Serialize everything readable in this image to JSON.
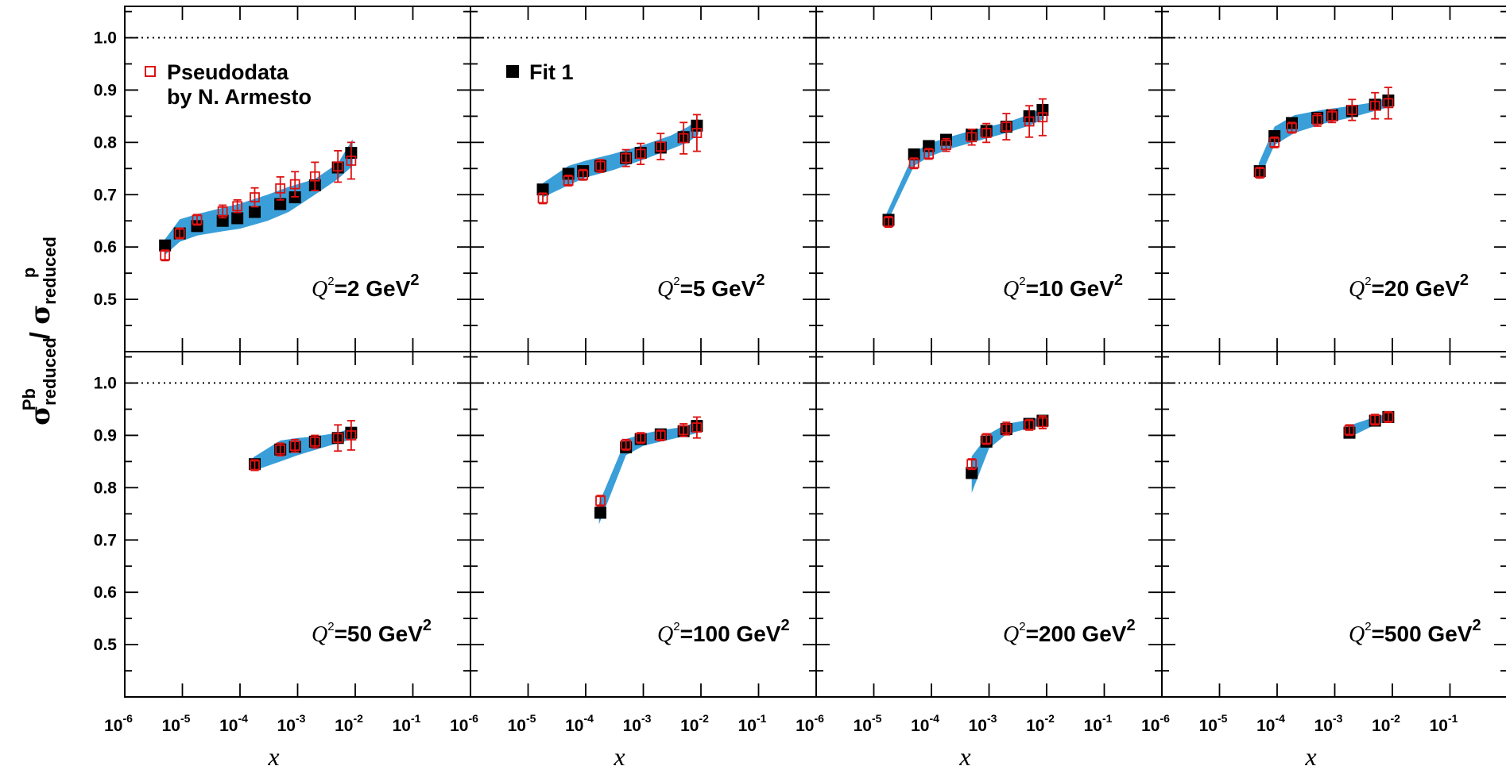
{
  "colors": {
    "band": "#3a9fd8",
    "pseudodata": "#dd1111",
    "fit": "#000000",
    "frame": "#000000"
  },
  "y_axis_label": {
    "sigma": "σ",
    "numerator_sub": "reduced",
    "numerator_sup": "Pb",
    "slash": " / ",
    "denominator_sub": "reduced",
    "denominator_sup": "p"
  },
  "x_axis_label": "x",
  "legend": {
    "pseudodata_line1": "Pseudodata",
    "pseudodata_line2": "by N. Armesto",
    "fit": "Fit 1"
  },
  "chart_data": {
    "type": "scatter",
    "layout": "2 rows × 4 columns of panels, shared axes",
    "x_scale": "log",
    "xlim": [
      1e-06,
      1
    ],
    "ylim": [
      0.4,
      1.06
    ],
    "x_tick_labels": [
      "10-6",
      "10-5",
      "10-4",
      "10-3",
      "10-2",
      "10-1"
    ],
    "y_ticks": [
      0.5,
      0.6,
      0.7,
      0.8,
      0.9,
      1.0
    ],
    "y_tick_labels": [
      "0.5",
      "0.6",
      "0.7",
      "0.8",
      "0.9",
      "1.0"
    ],
    "reference_line": 1.0,
    "series_names": [
      "Pseudodata by N. Armesto",
      "Fit 1"
    ],
    "panels": [
      {
        "label_sym": "Q",
        "label_sup": "2",
        "label_value": "=2 GeV",
        "label_unit_sup": "2",
        "pseudo": [
          [
            5e-06,
            0.584,
            0.01
          ],
          [
            9e-06,
            0.626,
            0.01
          ],
          [
            1.8e-05,
            0.652,
            0.01
          ],
          [
            5e-05,
            0.668,
            0.012
          ],
          [
            9e-05,
            0.678,
            0.012
          ],
          [
            0.00018,
            0.695,
            0.018
          ],
          [
            0.0005,
            0.712,
            0.022
          ],
          [
            0.0009,
            0.72,
            0.024
          ],
          [
            0.002,
            0.735,
            0.027
          ],
          [
            0.005,
            0.754,
            0.03
          ],
          [
            0.0085,
            0.765,
            0.035
          ]
        ],
        "fit": [
          [
            5e-06,
            0.603
          ],
          [
            9e-06,
            0.626
          ],
          [
            1.8e-05,
            0.64
          ],
          [
            5e-05,
            0.65
          ],
          [
            9e-05,
            0.655
          ],
          [
            0.00018,
            0.667
          ],
          [
            0.0005,
            0.682
          ],
          [
            0.0009,
            0.695
          ],
          [
            0.002,
            0.718
          ],
          [
            0.005,
            0.752
          ],
          [
            0.0085,
            0.78
          ]
        ],
        "band": [
          [
            5e-06,
            0.585,
            0.615
          ],
          [
            9e-06,
            0.61,
            0.653
          ],
          [
            1.8e-05,
            0.622,
            0.663
          ],
          [
            5e-05,
            0.63,
            0.675
          ],
          [
            0.0001,
            0.635,
            0.683
          ],
          [
            0.0003,
            0.65,
            0.7
          ],
          [
            0.0007,
            0.667,
            0.715
          ],
          [
            0.002,
            0.7,
            0.73
          ],
          [
            0.005,
            0.73,
            0.76
          ],
          [
            0.009,
            0.755,
            0.806
          ]
        ]
      },
      {
        "label_sym": "Q",
        "label_sup": "2",
        "label_value": "=5 GeV",
        "label_unit_sup": "2",
        "pseudo": [
          [
            1.8e-05,
            0.693,
            0.01
          ],
          [
            5e-05,
            0.727,
            0.01
          ],
          [
            9e-05,
            0.738,
            0.01
          ],
          [
            0.00018,
            0.755,
            0.012
          ],
          [
            0.0005,
            0.77,
            0.016
          ],
          [
            0.0009,
            0.778,
            0.02
          ],
          [
            0.002,
            0.792,
            0.025
          ],
          [
            0.005,
            0.808,
            0.03
          ],
          [
            0.0085,
            0.818,
            0.035
          ]
        ],
        "fit": [
          [
            1.8e-05,
            0.71
          ],
          [
            5e-05,
            0.74
          ],
          [
            9e-05,
            0.745
          ],
          [
            0.00018,
            0.755
          ],
          [
            0.0005,
            0.77
          ],
          [
            0.0009,
            0.78
          ],
          [
            0.002,
            0.79
          ],
          [
            0.005,
            0.81
          ],
          [
            0.0085,
            0.832
          ]
        ],
        "band": [
          [
            1.8e-05,
            0.695,
            0.722
          ],
          [
            5e-05,
            0.718,
            0.755
          ],
          [
            0.0001,
            0.733,
            0.765
          ],
          [
            0.0003,
            0.747,
            0.778
          ],
          [
            0.001,
            0.767,
            0.795
          ],
          [
            0.003,
            0.787,
            0.813
          ],
          [
            0.006,
            0.8,
            0.83
          ],
          [
            0.009,
            0.815,
            0.845
          ]
        ]
      },
      {
        "label_sym": "Q",
        "label_sup": "2",
        "label_value": "=10 GeV",
        "label_unit_sup": "2",
        "pseudo": [
          [
            1.8e-05,
            0.648,
            0.01
          ],
          [
            5e-05,
            0.76,
            0.01
          ],
          [
            9e-05,
            0.778,
            0.01
          ],
          [
            0.00018,
            0.795,
            0.012
          ],
          [
            0.0005,
            0.81,
            0.015
          ],
          [
            0.0009,
            0.818,
            0.018
          ],
          [
            0.002,
            0.83,
            0.025
          ],
          [
            0.005,
            0.84,
            0.03
          ],
          [
            0.0085,
            0.848,
            0.035
          ]
        ],
        "fit": [
          [
            1.8e-05,
            0.652
          ],
          [
            5e-05,
            0.777
          ],
          [
            9e-05,
            0.793
          ],
          [
            0.00018,
            0.805
          ],
          [
            0.0005,
            0.815
          ],
          [
            0.0009,
            0.822
          ],
          [
            0.002,
            0.83
          ],
          [
            0.005,
            0.85
          ],
          [
            0.0085,
            0.862
          ]
        ],
        "band": [
          [
            1.6e-05,
            0.64,
            0.66
          ],
          [
            5e-05,
            0.755,
            0.78
          ],
          [
            9e-05,
            0.772,
            0.798
          ],
          [
            0.0002,
            0.787,
            0.81
          ],
          [
            0.0006,
            0.802,
            0.825
          ],
          [
            0.002,
            0.818,
            0.838
          ],
          [
            0.005,
            0.832,
            0.853
          ],
          [
            0.009,
            0.845,
            0.868
          ]
        ]
      },
      {
        "label_sym": "Q",
        "label_sup": "2",
        "label_value": "=20 GeV",
        "label_unit_sup": "2",
        "pseudo": [
          [
            5e-05,
            0.742,
            0.01
          ],
          [
            9e-05,
            0.8,
            0.01
          ],
          [
            0.00018,
            0.828,
            0.01
          ],
          [
            0.0005,
            0.843,
            0.012
          ],
          [
            0.0009,
            0.85,
            0.012
          ],
          [
            0.002,
            0.862,
            0.02
          ],
          [
            0.005,
            0.87,
            0.025
          ],
          [
            0.0085,
            0.875,
            0.03
          ]
        ],
        "fit": [
          [
            5e-05,
            0.745
          ],
          [
            9e-05,
            0.812
          ],
          [
            0.00018,
            0.837
          ],
          [
            0.0005,
            0.847
          ],
          [
            0.0009,
            0.852
          ],
          [
            0.002,
            0.86
          ],
          [
            0.005,
            0.872
          ],
          [
            0.0085,
            0.88
          ]
        ],
        "band": [
          [
            4.8e-05,
            0.728,
            0.76
          ],
          [
            9e-05,
            0.795,
            0.83
          ],
          [
            0.0002,
            0.818,
            0.852
          ],
          [
            0.0006,
            0.835,
            0.862
          ],
          [
            0.002,
            0.848,
            0.87
          ],
          [
            0.005,
            0.86,
            0.877
          ],
          [
            0.009,
            0.868,
            0.888
          ]
        ]
      },
      {
        "label_sym": "Q",
        "label_sup": "2",
        "label_value": "=50 GeV",
        "label_unit_sup": "2",
        "pseudo": [
          [
            0.00018,
            0.843,
            0.01
          ],
          [
            0.0005,
            0.873,
            0.012
          ],
          [
            0.0009,
            0.88,
            0.012
          ],
          [
            0.002,
            0.888,
            0.012
          ],
          [
            0.005,
            0.895,
            0.025
          ],
          [
            0.0085,
            0.9,
            0.028
          ]
        ],
        "fit": [
          [
            0.00018,
            0.845
          ],
          [
            0.0005,
            0.873
          ],
          [
            0.0009,
            0.878
          ],
          [
            0.002,
            0.888
          ],
          [
            0.005,
            0.895
          ],
          [
            0.0085,
            0.905
          ]
        ],
        "band": [
          [
            0.00017,
            0.832,
            0.858
          ],
          [
            0.0005,
            0.85,
            0.89
          ],
          [
            0.001,
            0.862,
            0.895
          ],
          [
            0.002,
            0.872,
            0.898
          ],
          [
            0.005,
            0.885,
            0.905
          ],
          [
            0.009,
            0.893,
            0.915
          ]
        ]
      },
      {
        "label_sym": "Q",
        "label_sup": "2",
        "label_value": "=100 GeV",
        "label_unit_sup": "2",
        "pseudo": [
          [
            0.00018,
            0.775,
            0.01
          ],
          [
            0.0005,
            0.882,
            0.01
          ],
          [
            0.0009,
            0.895,
            0.01
          ],
          [
            0.002,
            0.9,
            0.01
          ],
          [
            0.005,
            0.91,
            0.012
          ],
          [
            0.0085,
            0.915,
            0.02
          ]
        ],
        "fit": [
          [
            0.00018,
            0.752
          ],
          [
            0.0005,
            0.877
          ],
          [
            0.0009,
            0.893
          ],
          [
            0.002,
            0.902
          ],
          [
            0.005,
            0.908
          ],
          [
            0.0085,
            0.918
          ]
        ],
        "band": [
          [
            0.00017,
            0.73,
            0.77
          ],
          [
            0.0005,
            0.862,
            0.893
          ],
          [
            0.001,
            0.88,
            0.903
          ],
          [
            0.002,
            0.888,
            0.91
          ],
          [
            0.005,
            0.898,
            0.916
          ],
          [
            0.009,
            0.905,
            0.928
          ]
        ]
      },
      {
        "label_sym": "Q",
        "label_sup": "2",
        "label_value": "=200 GeV",
        "label_unit_sup": "2",
        "pseudo": [
          [
            0.0005,
            0.845,
            0.01
          ],
          [
            0.0009,
            0.893,
            0.01
          ],
          [
            0.002,
            0.913,
            0.012
          ],
          [
            0.005,
            0.92,
            0.01
          ],
          [
            0.0085,
            0.925,
            0.012
          ]
        ],
        "fit": [
          [
            0.0005,
            0.828
          ],
          [
            0.0009,
            0.888
          ],
          [
            0.002,
            0.912
          ],
          [
            0.005,
            0.922
          ],
          [
            0.0085,
            0.928
          ]
        ],
        "band": [
          [
            0.0005,
            0.79,
            0.86
          ],
          [
            0.001,
            0.875,
            0.903
          ],
          [
            0.002,
            0.902,
            0.922
          ],
          [
            0.005,
            0.914,
            0.93
          ],
          [
            0.009,
            0.92,
            0.935
          ]
        ]
      },
      {
        "label_sym": "Q",
        "label_sup": "2",
        "label_value": "=500 GeV",
        "label_unit_sup": "2",
        "pseudo": [
          [
            0.0018,
            0.91,
            0.01
          ],
          [
            0.005,
            0.93,
            0.01
          ],
          [
            0.0085,
            0.935,
            0.01
          ]
        ],
        "fit": [
          [
            0.0018,
            0.905
          ],
          [
            0.005,
            0.928
          ],
          [
            0.0085,
            0.935
          ]
        ],
        "band": [
          [
            0.0017,
            0.895,
            0.918
          ],
          [
            0.005,
            0.92,
            0.935
          ],
          [
            0.009,
            0.928,
            0.942
          ]
        ]
      }
    ]
  }
}
